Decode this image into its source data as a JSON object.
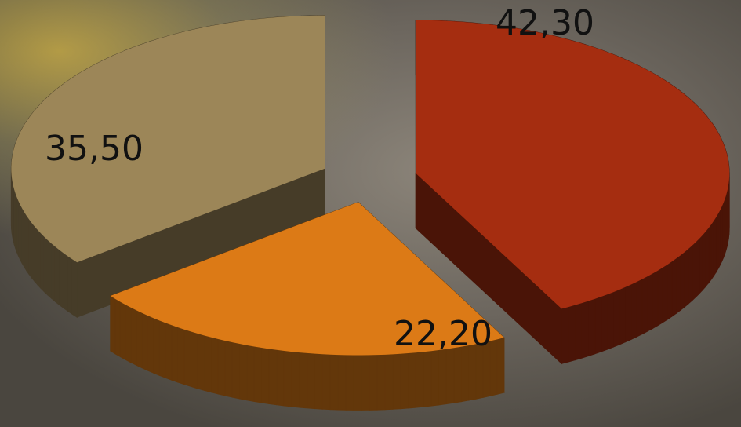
{
  "chart_data": {
    "type": "pie3d",
    "categories": [
      null,
      null,
      null
    ],
    "values": [
      42.3,
      22.2,
      35.5
    ],
    "value_labels": [
      "42,30",
      "22,20",
      "35,50"
    ],
    "colors": [
      "#a52d10",
      "#dc7a16",
      "#9c8658"
    ]
  }
}
